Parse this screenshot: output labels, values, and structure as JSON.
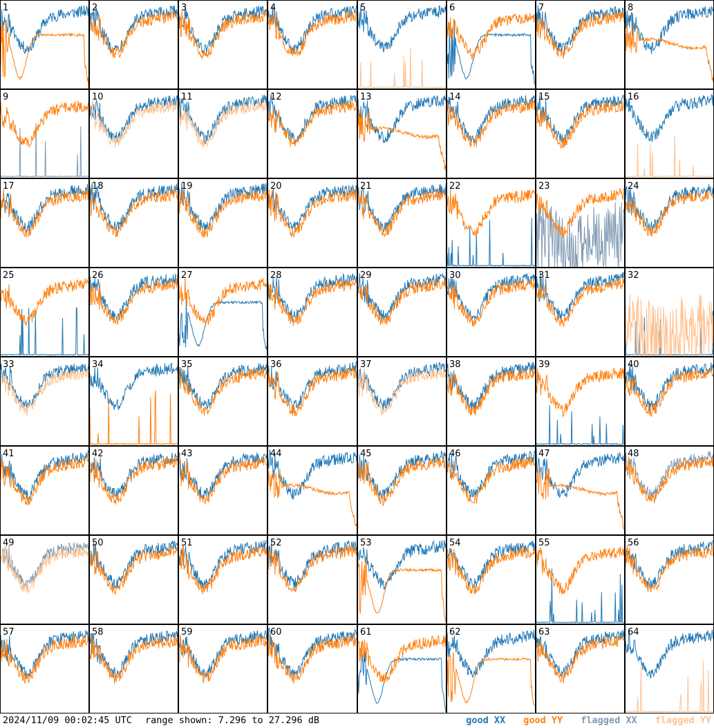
{
  "colors": {
    "good_xx": "#1f77b4",
    "good_yy": "#ff7f0e",
    "flagged_xx": "#7f99b2",
    "flagged_yy": "#ffc08e",
    "border": "#000000"
  },
  "footer": {
    "timestamp": "2024/11/09 00:02:45 UTC",
    "range_text": "range shown: 7.296 to 27.296 dB"
  },
  "legend": {
    "good_xx": "good XX",
    "good_yy": "good YY",
    "flagged_xx": "flagged XX",
    "flagged_yy": "flagged YY"
  },
  "chart_data": {
    "type": "line",
    "layout": "small-multiples-8x8",
    "y_unit": "dB",
    "ylim": [
      7.296,
      27.296
    ],
    "panels": [
      {
        "id": "1",
        "xx": "good",
        "xx_shape": "normal",
        "yy": "good",
        "yy_shape": "dip"
      },
      {
        "id": "2",
        "xx": "good",
        "xx_shape": "normal",
        "yy": "good",
        "yy_shape": "normal"
      },
      {
        "id": "3",
        "xx": "good",
        "xx_shape": "normal",
        "yy": "good",
        "yy_shape": "normal"
      },
      {
        "id": "4",
        "xx": "good",
        "xx_shape": "normal",
        "yy": "good",
        "yy_shape": "normal"
      },
      {
        "id": "5",
        "xx": "good",
        "xx_shape": "normal",
        "yy": "flagged",
        "yy_shape": "spikes"
      },
      {
        "id": "6",
        "xx": "good",
        "xx_shape": "dip",
        "yy": "good",
        "yy_shape": "normal"
      },
      {
        "id": "7",
        "xx": "good",
        "xx_shape": "normal",
        "yy": "good",
        "yy_shape": "normal"
      },
      {
        "id": "8",
        "xx": "good",
        "xx_shape": "normal",
        "yy": "good",
        "yy_shape": "flat"
      },
      {
        "id": "9",
        "xx": "flagged",
        "xx_shape": "spikes",
        "yy": "good",
        "yy_shape": "normal"
      },
      {
        "id": "10",
        "xx": "good",
        "xx_shape": "normal",
        "yy": "flagged",
        "yy_shape": "normal"
      },
      {
        "id": "11",
        "xx": "good",
        "xx_shape": "normal",
        "yy": "flagged",
        "yy_shape": "normal"
      },
      {
        "id": "12",
        "xx": "good",
        "xx_shape": "normal",
        "yy": "good",
        "yy_shape": "normal"
      },
      {
        "id": "13",
        "xx": "good",
        "xx_shape": "normal",
        "yy": "good",
        "yy_shape": "flat"
      },
      {
        "id": "14",
        "xx": "good",
        "xx_shape": "normal",
        "yy": "good",
        "yy_shape": "normal"
      },
      {
        "id": "15",
        "xx": "good",
        "xx_shape": "normal",
        "yy": "good",
        "yy_shape": "normal"
      },
      {
        "id": "16",
        "xx": "good",
        "xx_shape": "normal",
        "yy": "flagged",
        "yy_shape": "spikes"
      },
      {
        "id": "17",
        "xx": "good",
        "xx_shape": "normal",
        "yy": "good",
        "yy_shape": "normal"
      },
      {
        "id": "18",
        "xx": "good",
        "xx_shape": "normal",
        "yy": "good",
        "yy_shape": "normal"
      },
      {
        "id": "19",
        "xx": "good",
        "xx_shape": "normal",
        "yy": "good",
        "yy_shape": "normal"
      },
      {
        "id": "20",
        "xx": "good",
        "xx_shape": "normal",
        "yy": "good",
        "yy_shape": "normal"
      },
      {
        "id": "21",
        "xx": "good",
        "xx_shape": "normal",
        "yy": "good",
        "yy_shape": "normal"
      },
      {
        "id": "22",
        "xx": "good",
        "xx_shape": "spikes",
        "yy": "good",
        "yy_shape": "normal"
      },
      {
        "id": "23",
        "xx": "flagged",
        "xx_shape": "noisy",
        "yy": "good",
        "yy_shape": "normal"
      },
      {
        "id": "24",
        "xx": "good",
        "xx_shape": "normal",
        "yy": "good",
        "yy_shape": "normal"
      },
      {
        "id": "25",
        "xx": "good",
        "xx_shape": "spikes",
        "yy": "good",
        "yy_shape": "normal"
      },
      {
        "id": "26",
        "xx": "good",
        "xx_shape": "normal",
        "yy": "good",
        "yy_shape": "normal"
      },
      {
        "id": "27",
        "xx": "good",
        "xx_shape": "dip",
        "yy": "good",
        "yy_shape": "normal"
      },
      {
        "id": "28",
        "xx": "good",
        "xx_shape": "normal",
        "yy": "good",
        "yy_shape": "normal"
      },
      {
        "id": "29",
        "xx": "good",
        "xx_shape": "normal",
        "yy": "good",
        "yy_shape": "normal"
      },
      {
        "id": "30",
        "xx": "good",
        "xx_shape": "normal",
        "yy": "good",
        "yy_shape": "normal"
      },
      {
        "id": "31",
        "xx": "good",
        "xx_shape": "normal",
        "yy": "good",
        "yy_shape": "normal"
      },
      {
        "id": "32",
        "xx": "good",
        "xx_shape": "spikes",
        "yy": "flagged",
        "yy_shape": "noisy"
      },
      {
        "id": "33",
        "xx": "good",
        "xx_shape": "normal",
        "yy": "flagged",
        "yy_shape": "normal"
      },
      {
        "id": "34",
        "xx": "good",
        "xx_shape": "normal",
        "yy": "good",
        "yy_shape": "spikes"
      },
      {
        "id": "35",
        "xx": "good",
        "xx_shape": "normal",
        "yy": "good",
        "yy_shape": "normal"
      },
      {
        "id": "36",
        "xx": "good",
        "xx_shape": "normal",
        "yy": "good",
        "yy_shape": "normal"
      },
      {
        "id": "37",
        "xx": "good",
        "xx_shape": "normal",
        "yy": "flagged",
        "yy_shape": "normal"
      },
      {
        "id": "38",
        "xx": "good",
        "xx_shape": "normal",
        "yy": "good",
        "yy_shape": "normal"
      },
      {
        "id": "39",
        "xx": "good",
        "xx_shape": "spikes",
        "yy": "good",
        "yy_shape": "normal"
      },
      {
        "id": "40",
        "xx": "good",
        "xx_shape": "normal",
        "yy": "good",
        "yy_shape": "normal"
      },
      {
        "id": "41",
        "xx": "good",
        "xx_shape": "normal",
        "yy": "good",
        "yy_shape": "normal"
      },
      {
        "id": "42",
        "xx": "good",
        "xx_shape": "normal",
        "yy": "good",
        "yy_shape": "normal"
      },
      {
        "id": "43",
        "xx": "good",
        "xx_shape": "normal",
        "yy": "good",
        "yy_shape": "normal"
      },
      {
        "id": "44",
        "xx": "good",
        "xx_shape": "normal",
        "yy": "good",
        "yy_shape": "flat"
      },
      {
        "id": "45",
        "xx": "good",
        "xx_shape": "normal",
        "yy": "good",
        "yy_shape": "normal"
      },
      {
        "id": "46",
        "xx": "good",
        "xx_shape": "normal",
        "yy": "good",
        "yy_shape": "normal"
      },
      {
        "id": "47",
        "xx": "good",
        "xx_shape": "normal",
        "yy": "good",
        "yy_shape": "flat"
      },
      {
        "id": "48",
        "xx": "flagged",
        "xx_shape": "normal",
        "yy": "good",
        "yy_shape": "normal"
      },
      {
        "id": "49",
        "xx": "flagged",
        "xx_shape": "normal",
        "yy": "flagged",
        "yy_shape": "normal"
      },
      {
        "id": "50",
        "xx": "good",
        "xx_shape": "normal",
        "yy": "good",
        "yy_shape": "normal"
      },
      {
        "id": "51",
        "xx": "good",
        "xx_shape": "normal",
        "yy": "good",
        "yy_shape": "normal"
      },
      {
        "id": "52",
        "xx": "good",
        "xx_shape": "normal",
        "yy": "good",
        "yy_shape": "normal"
      },
      {
        "id": "53",
        "xx": "good",
        "xx_shape": "normal",
        "yy": "good",
        "yy_shape": "dip"
      },
      {
        "id": "54",
        "xx": "good",
        "xx_shape": "normal",
        "yy": "good",
        "yy_shape": "normal"
      },
      {
        "id": "55",
        "xx": "good",
        "xx_shape": "spikes",
        "yy": "good",
        "yy_shape": "normal"
      },
      {
        "id": "56",
        "xx": "good",
        "xx_shape": "normal",
        "yy": "good",
        "yy_shape": "normal"
      },
      {
        "id": "57",
        "xx": "good",
        "xx_shape": "normal",
        "yy": "good",
        "yy_shape": "normal"
      },
      {
        "id": "58",
        "xx": "good",
        "xx_shape": "normal",
        "yy": "good",
        "yy_shape": "normal"
      },
      {
        "id": "59",
        "xx": "good",
        "xx_shape": "normal",
        "yy": "good",
        "yy_shape": "normal"
      },
      {
        "id": "60",
        "xx": "good",
        "xx_shape": "normal",
        "yy": "good",
        "yy_shape": "normal"
      },
      {
        "id": "61",
        "xx": "good",
        "xx_shape": "dip",
        "yy": "good",
        "yy_shape": "normal"
      },
      {
        "id": "62",
        "xx": "good",
        "xx_shape": "normal",
        "yy": "good",
        "yy_shape": "dip"
      },
      {
        "id": "63",
        "xx": "good",
        "xx_shape": "normal",
        "yy": "good",
        "yy_shape": "normal"
      },
      {
        "id": "64",
        "xx": "good",
        "xx_shape": "normal",
        "yy": "flagged",
        "yy_shape": "spikes"
      }
    ]
  }
}
